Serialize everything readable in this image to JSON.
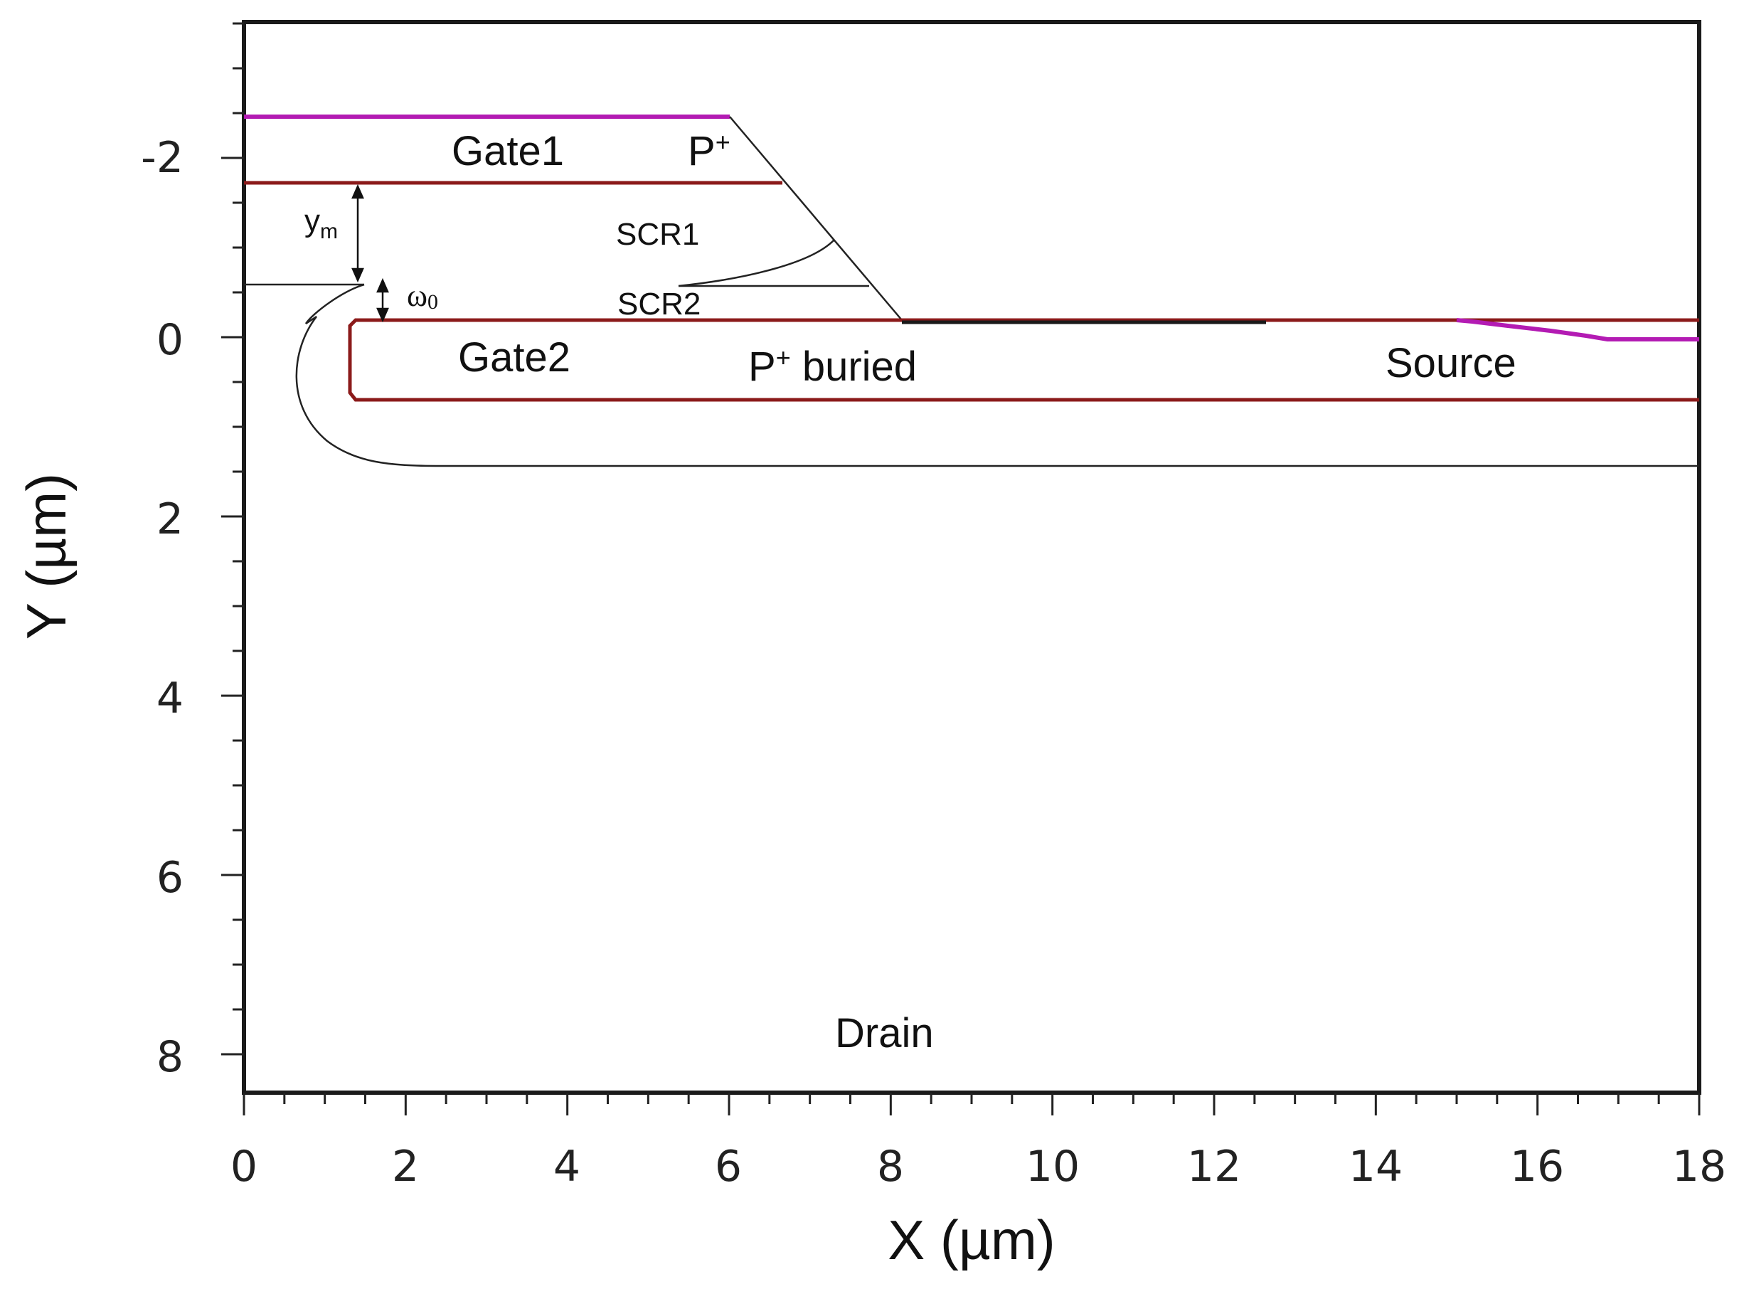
{
  "axes": {
    "x_title": "X (µm)",
    "y_title": "Y (µm)",
    "x_ticks": [
      "0",
      "2",
      "4",
      "6",
      "8",
      "10",
      "12",
      "14",
      "16",
      "18"
    ],
    "y_ticks": [
      "-2",
      "0",
      "2",
      "4",
      "6",
      "8"
    ]
  },
  "labels": {
    "gate1": "Gate1",
    "p_plus": "P",
    "p_plus_sup": "+",
    "scr1": "SCR1",
    "scr2": "SCR2",
    "y_m": "y",
    "y_m_sub": "m",
    "omega": "ω",
    "omega_sub": "0",
    "gate2": "Gate2",
    "p_buried": "P",
    "p_buried_sup": "+",
    "p_buried_rest": " buried",
    "source": "Source",
    "drain": "Drain"
  },
  "colors": {
    "boundary_dark_red": "#8b1a1a",
    "contact_magenta": "#b31bb3",
    "line_black": "#222222"
  }
}
